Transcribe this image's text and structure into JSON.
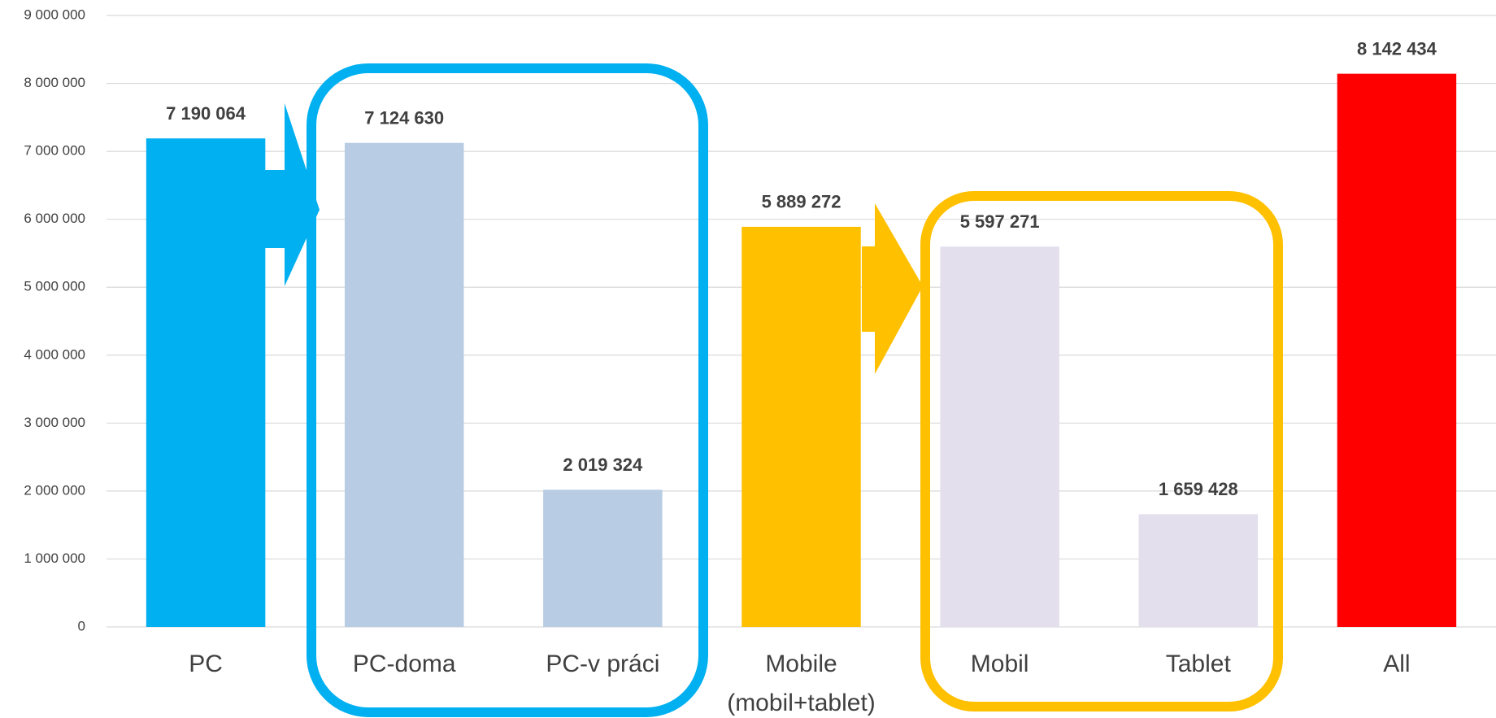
{
  "chart_data": {
    "type": "bar",
    "categories": [
      "PC",
      "PC-doma",
      "PC-v práci",
      "Mobile (mobil+tablet)",
      "Mobil",
      "Tablet",
      "All"
    ],
    "values": [
      7190064,
      7124630,
      2019324,
      5889272,
      5597271,
      1659428,
      8142434
    ],
    "value_labels": [
      "7 190 064",
      "7 124 630",
      "2 019 324",
      "5 889 272",
      "5 597 271",
      "1 659 428",
      "8 142 434"
    ],
    "colors": [
      "#00b0f0",
      "#b8cce4",
      "#b8cce4",
      "#ffc000",
      "#e4dfec",
      "#e4dfec",
      "#ff0000"
    ],
    "ylim": [
      0,
      9000000
    ],
    "yticks": [
      0,
      {
        "value": 1000000,
        "label": "1 000 000"
      },
      {
        "value": 2000000,
        "label": "2 000 000"
      },
      {
        "value": 3000000,
        "label": "3 000 000"
      },
      {
        "value": 4000000,
        "label": "4 000 000"
      },
      {
        "value": 5000000,
        "label": "5 000 000"
      },
      {
        "value": 6000000,
        "label": "6 000 000"
      },
      {
        "value": 7000000,
        "label": "7 000 000"
      },
      {
        "value": 8000000,
        "label": "8 000 000"
      },
      {
        "value": 9000000,
        "label": "9 000 000"
      }
    ],
    "grid": true
  }
}
